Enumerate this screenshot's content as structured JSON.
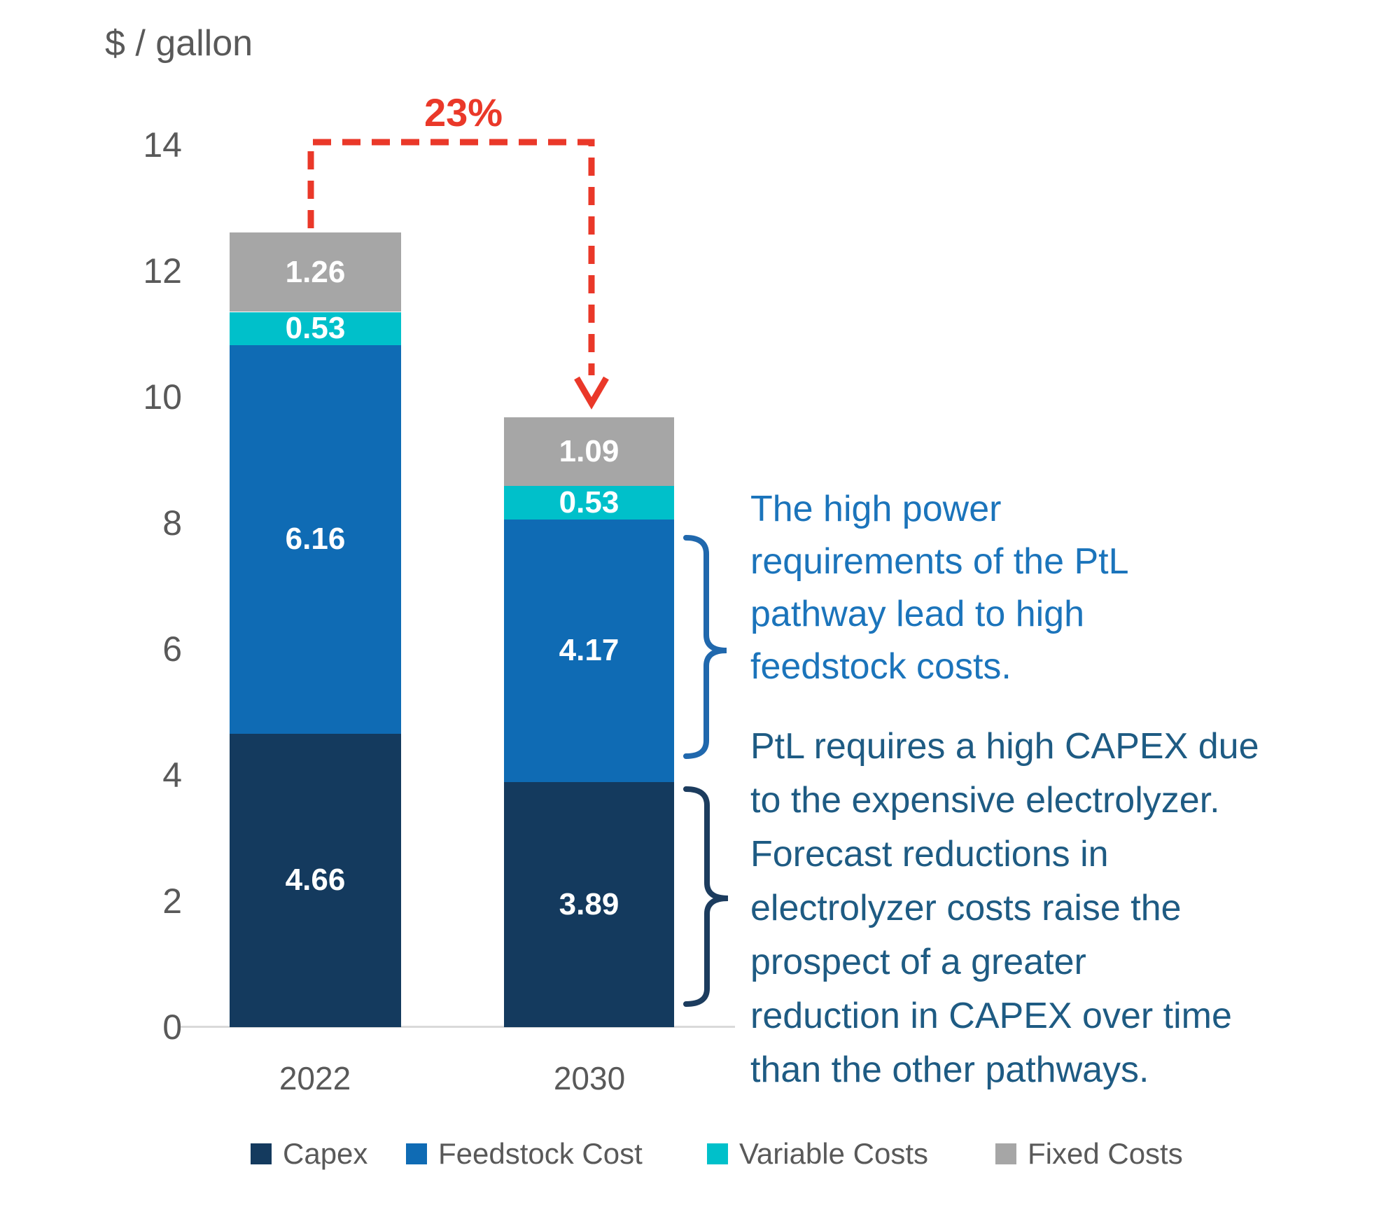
{
  "title": "$ / gallon",
  "chart_data": {
    "type": "bar",
    "stacked": true,
    "title": "$ / gallon",
    "ylabel": "$ / gallon",
    "categories": [
      "2022",
      "2030"
    ],
    "series": [
      {
        "name": "Capex",
        "color": "#143A5E",
        "values": [
          4.66,
          3.89
        ]
      },
      {
        "name": "Feedstock Cost",
        "color": "#0F6BB4",
        "values": [
          6.16,
          4.17
        ]
      },
      {
        "name": "Variable Costs",
        "color": "#00C0CA",
        "values": [
          0.53,
          0.53
        ]
      },
      {
        "name": "Fixed Costs",
        "color": "#A6A6A6",
        "values": [
          1.26,
          1.09
        ]
      }
    ],
    "totals": [
      12.61,
      9.68
    ],
    "ylim": [
      0,
      14
    ],
    "yticks": [
      0,
      2,
      4,
      6,
      8,
      10,
      12,
      14
    ],
    "grid": false,
    "legend_position": "bottom",
    "value_labels": "inside-white-bold",
    "annotation": {
      "percent_change_label": "23%",
      "from_category": "2022",
      "to_category": "2030"
    }
  },
  "annotations": {
    "percent_label": "23%",
    "percent_color": "#EA3829",
    "block1": {
      "color": "#1B74BB",
      "lines": [
        "The high power",
        "requirements of the PtL",
        "pathway lead to high",
        "feedstock costs."
      ]
    },
    "block2": {
      "color": "#1E5B83",
      "lines": [
        "PtL requires a high CAPEX due",
        "to the expensive electrolyzer.",
        "Forecast reductions in",
        "electrolyzer costs raise the",
        "prospect of a greater",
        "reduction in CAPEX over time",
        "than the other pathways."
      ]
    }
  },
  "legend": {
    "items": [
      {
        "label": "Capex",
        "color": "#143A5E"
      },
      {
        "label": "Feedstock Cost",
        "color": "#0F6BB4"
      },
      {
        "label": "Variable Costs",
        "color": "#00C0CA"
      },
      {
        "label": "Fixed Costs",
        "color": "#A6A6A6"
      }
    ]
  },
  "axis": {
    "x_labels": [
      "2022",
      "2030"
    ],
    "text_color": "#595959",
    "line_color": "#d9d9d9"
  },
  "connector": {
    "color": "#EA3829",
    "brace_feedstock_color": "#2068AD",
    "brace_capex_color": "#1C3C5E"
  }
}
